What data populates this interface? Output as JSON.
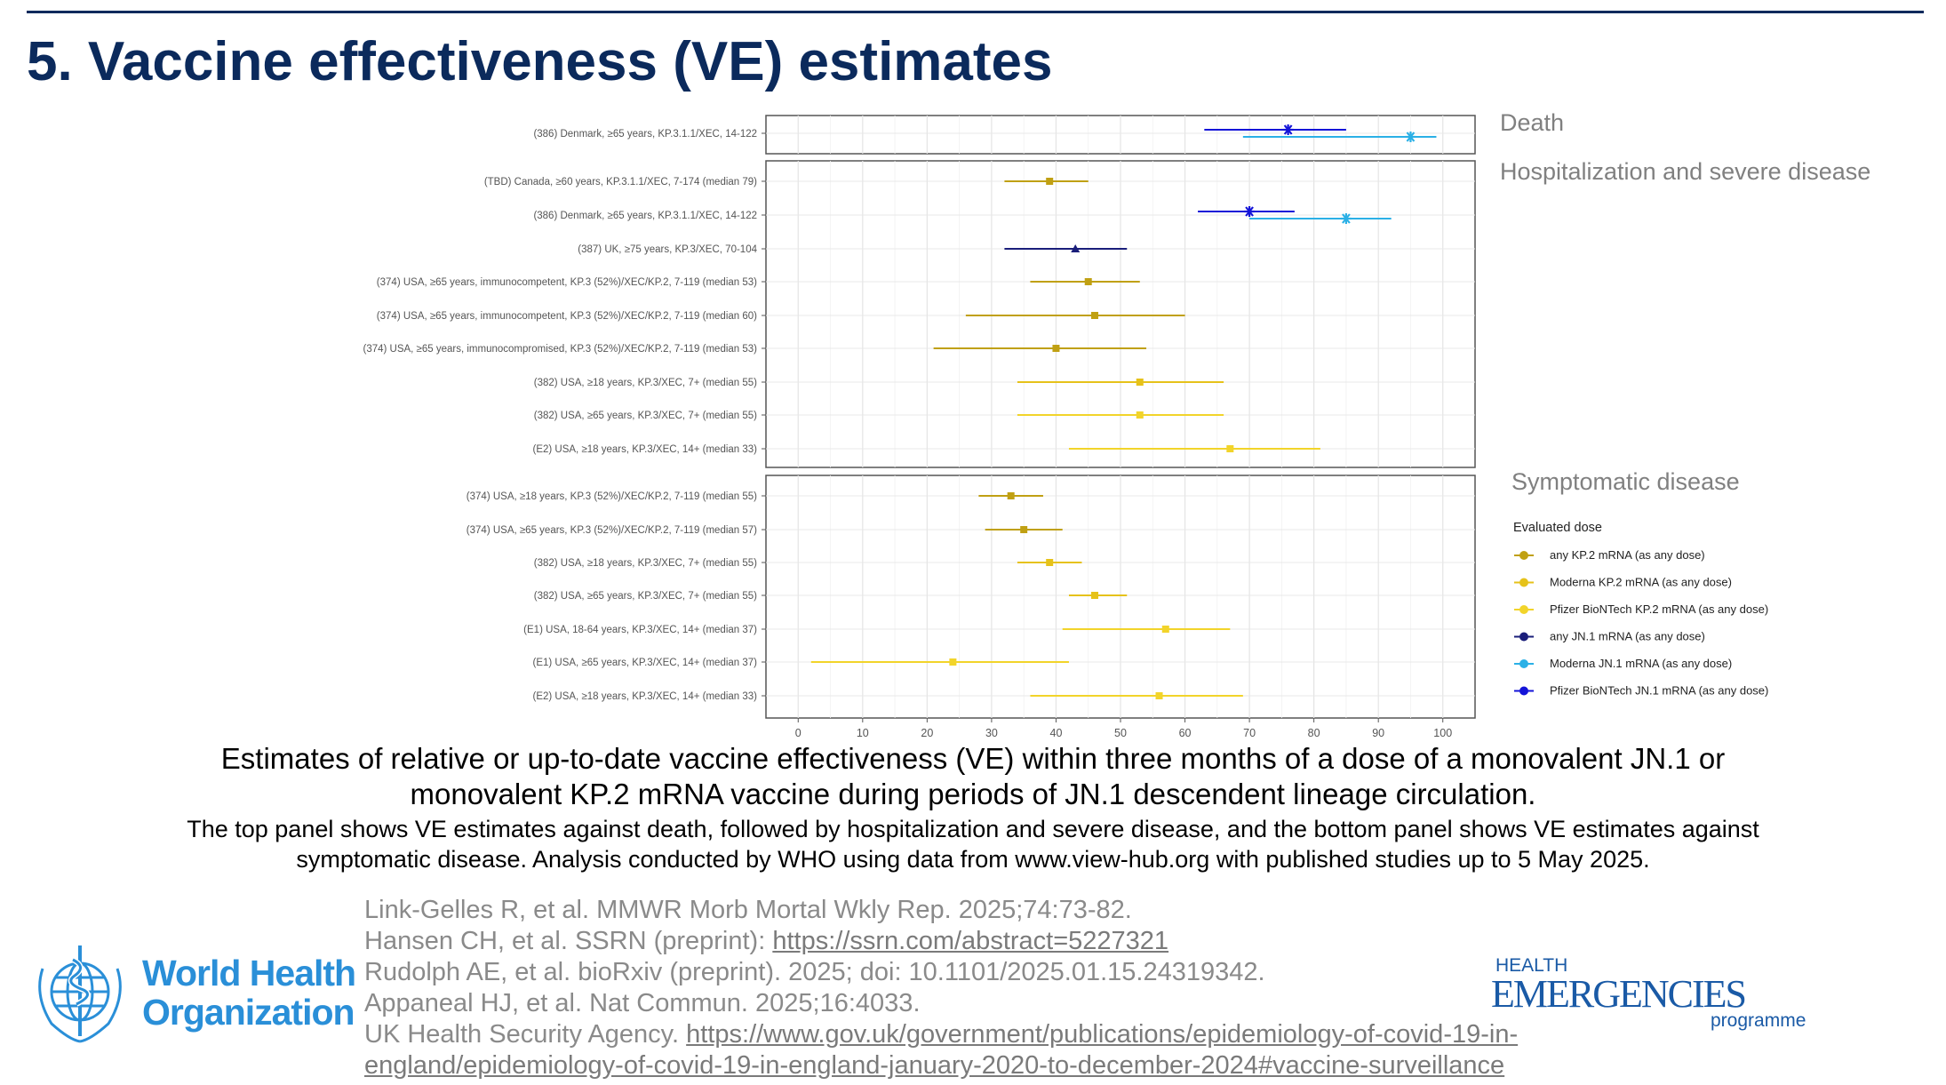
{
  "title": "5. Vaccine effectiveness (VE) estimates",
  "chart_data": {
    "type": "forest",
    "xlim": [
      -5,
      105
    ],
    "xticks": [
      0,
      10,
      20,
      30,
      40,
      50,
      60,
      70,
      80,
      90,
      100
    ],
    "panels": [
      {
        "name": "Death",
        "rows": [
          {
            "label": "(386) Denmark, ≥65 years, KP.3.1.1/XEC, 14-122",
            "points": [
              {
                "dose": "Pfizer BioNTech JN.1 mRNA (as any dose)",
                "ve": 76,
                "lo": 63,
                "hi": 85
              },
              {
                "dose": "Moderna JN.1 mRNA (as any dose)",
                "ve": 95,
                "lo": 69,
                "hi": 99
              }
            ]
          }
        ]
      },
      {
        "name": "Hospitalization and severe disease",
        "rows": [
          {
            "label": "(TBD) Canada, ≥60 years, KP.3.1.1/XEC, 7-174 (median 79)",
            "points": [
              {
                "dose": "any KP.2 mRNA (as any dose)",
                "ve": 39,
                "lo": 32,
                "hi": 45
              }
            ]
          },
          {
            "label": "(386) Denmark, ≥65 years, KP.3.1.1/XEC, 14-122",
            "points": [
              {
                "dose": "Pfizer BioNTech JN.1 mRNA (as any dose)",
                "ve": 70,
                "lo": 62,
                "hi": 77
              },
              {
                "dose": "Moderna JN.1 mRNA (as any dose)",
                "ve": 85,
                "lo": 70,
                "hi": 92
              }
            ]
          },
          {
            "label": "(387) UK, ≥75 years, KP.3/XEC, 70-104",
            "points": [
              {
                "dose": "any JN.1 mRNA (as any dose)",
                "ve": 43,
                "lo": 32,
                "hi": 51
              }
            ]
          },
          {
            "label": "(374) USA, ≥65 years, immunocompetent, KP.3 (52%)/XEC/KP.2, 7-119 (median 53)",
            "points": [
              {
                "dose": "any KP.2 mRNA (as any dose)",
                "ve": 45,
                "lo": 36,
                "hi": 53
              }
            ]
          },
          {
            "label": "(374) USA, ≥65 years, immunocompetent, KP.3 (52%)/XEC/KP.2, 7-119 (median 60)",
            "points": [
              {
                "dose": "any KP.2 mRNA (as any dose)",
                "ve": 46,
                "lo": 26,
                "hi": 60
              }
            ]
          },
          {
            "label": "(374) USA, ≥65 years, immunocompromised, KP.3 (52%)/XEC/KP.2, 7-119 (median 53)",
            "points": [
              {
                "dose": "any KP.2 mRNA (as any dose)",
                "ve": 40,
                "lo": 21,
                "hi": 54
              }
            ]
          },
          {
            "label": "(382) USA, ≥18 years, KP.3/XEC, 7+ (median 55)",
            "points": [
              {
                "dose": "Moderna KP.2 mRNA (as any dose)",
                "ve": 53,
                "lo": 34,
                "hi": 66
              }
            ]
          },
          {
            "label": "(382) USA, ≥65 years, KP.3/XEC, 7+ (median 55)",
            "points": [
              {
                "dose": "Pfizer BioNTech KP.2 mRNA (as any dose)",
                "ve": 53,
                "lo": 34,
                "hi": 66
              }
            ]
          },
          {
            "label": "(E2) USA, ≥18 years, KP.3/XEC, 14+ (median 33)",
            "points": [
              {
                "dose": "Pfizer BioNTech KP.2 mRNA (as any dose)",
                "ve": 67,
                "lo": 42,
                "hi": 81
              }
            ]
          }
        ]
      },
      {
        "name": "Symptomatic disease",
        "rows": [
          {
            "label": "(374) USA, ≥18 years, KP.3 (52%)/XEC/KP.2, 7-119 (median 55)",
            "points": [
              {
                "dose": "any KP.2 mRNA (as any dose)",
                "ve": 33,
                "lo": 28,
                "hi": 38
              }
            ]
          },
          {
            "label": "(374) USA, ≥65 years, KP.3 (52%)/XEC/KP.2, 7-119 (median 57)",
            "points": [
              {
                "dose": "any KP.2 mRNA (as any dose)",
                "ve": 35,
                "lo": 29,
                "hi": 41
              }
            ]
          },
          {
            "label": "(382) USA, ≥18 years, KP.3/XEC, 7+ (median 55)",
            "points": [
              {
                "dose": "Moderna KP.2 mRNA (as any dose)",
                "ve": 39,
                "lo": 34,
                "hi": 44
              }
            ]
          },
          {
            "label": "(382) USA, ≥65 years, KP.3/XEC, 7+ (median 55)",
            "points": [
              {
                "dose": "Moderna KP.2 mRNA (as any dose)",
                "ve": 46,
                "lo": 42,
                "hi": 51
              }
            ]
          },
          {
            "label": "(E1) USA, 18-64 years, KP.3/XEC, 14+ (median 37)",
            "points": [
              {
                "dose": "Pfizer BioNTech KP.2 mRNA (as any dose)",
                "ve": 57,
                "lo": 41,
                "hi": 67
              }
            ]
          },
          {
            "label": "(E1) USA, ≥65 years, KP.3/XEC, 14+ (median 37)",
            "points": [
              {
                "dose": "Pfizer BioNTech KP.2 mRNA (as any dose)",
                "ve": 24,
                "lo": 2,
                "hi": 42
              }
            ]
          },
          {
            "label": "(E2) USA, ≥18 years, KP.3/XEC, 14+ (median 33)",
            "points": [
              {
                "dose": "Pfizer BioNTech KP.2 mRNA (as any dose)",
                "ve": 56,
                "lo": 36,
                "hi": 69
              }
            ]
          }
        ]
      }
    ],
    "legend": {
      "title": "Evaluated dose",
      "items": [
        {
          "label": "any KP.2 mRNA (as any dose)",
          "color": "#c0a013"
        },
        {
          "label": "Moderna KP.2 mRNA (as any dose)",
          "color": "#e6c21a"
        },
        {
          "label": "Pfizer BioNTech KP.2 mRNA (as any dose)",
          "color": "#f2d42a"
        },
        {
          "label": "any JN.1 mRNA (as any dose)",
          "color": "#1a1e7a"
        },
        {
          "label": "Moderna JN.1 mRNA (as any dose)",
          "color": "#2bb0e6"
        },
        {
          "label": "Pfizer BioNTech JN.1 mRNA (as any dose)",
          "color": "#1414d8"
        }
      ]
    }
  },
  "caption": {
    "line1": "Estimates of relative or up-to-date vaccine effectiveness (VE) within three months of a dose of a monovalent JN.1 or",
    "line2": "monovalent KP.2 mRNA vaccine during periods of JN.1 descendent lineage circulation.",
    "line3": "The top panel shows VE estimates against death, followed by hospitalization and severe disease, and the bottom panel shows VE estimates against",
    "line4": "symptomatic disease. Analysis conducted by WHO using data from www.view-hub.org with published studies up to 5 May 2025."
  },
  "references": {
    "r1": "Link-Gelles R, et al. MMWR Morb Mortal Wkly Rep. 2025;74:73-82.",
    "r2_text": "Hansen CH, et al. SSRN (preprint): ",
    "r2_link": "https://ssrn.com/abstract=5227321",
    "r3": "Rudolph AE, et al. bioRxiv (preprint). 2025; doi: 10.1101/2025.01.15.24319342.",
    "r4": "Appaneal HJ, et al. Nat Commun. 2025;16:4033.",
    "r5_text": "UK Health Security Agency. ",
    "r5_link": "https://www.gov.uk/government/publications/epidemiology-of-covid-19-in-",
    "r6_link": "england/epidemiology-of-covid-19-in-england-january-2020-to-december-2024#vaccine-surveillance"
  },
  "logos": {
    "who_line1": "World Health",
    "who_line2": "Organization",
    "he_health": "HEALTH",
    "he_emergencies": "EMERGENCIES",
    "he_programme": "programme"
  }
}
